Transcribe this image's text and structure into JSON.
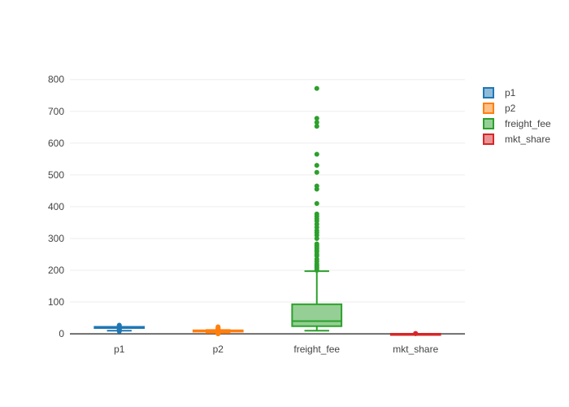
{
  "chart_data": {
    "type": "box",
    "title": "",
    "xlabel": "",
    "ylabel": "",
    "ylim": [
      -10,
      830
    ],
    "yticks": [
      0,
      100,
      200,
      300,
      400,
      500,
      600,
      700,
      800
    ],
    "grid": true,
    "legend_position": "top-right",
    "series": [
      {
        "name": "p1",
        "color": "#1f77b4",
        "min": 10,
        "q1": 20,
        "median": 21,
        "q3": 22,
        "max": 22,
        "outliers": [
          8,
          10,
          12,
          14,
          16,
          18,
          24,
          25,
          27
        ]
      },
      {
        "name": "p2",
        "color": "#ff7f0e",
        "min": 3,
        "q1": 7,
        "median": 9,
        "q3": 11,
        "max": 12,
        "outliers": [
          0,
          1,
          2,
          13,
          14,
          15,
          16,
          18,
          20,
          22
        ]
      },
      {
        "name": "freight_fee",
        "color": "#2ca02c",
        "min": 10,
        "q1": 24,
        "median": 40,
        "q3": 93,
        "max": 197,
        "outliers": [
          200,
          205,
          210,
          215,
          220,
          228,
          235,
          245,
          250,
          258,
          262,
          268,
          273,
          278,
          283,
          300,
          310,
          318,
          325,
          335,
          345,
          355,
          362,
          370,
          377,
          410,
          455,
          465,
          508,
          530,
          565,
          653,
          665,
          678,
          772
        ]
      },
      {
        "name": "mkt_share",
        "color": "#d62728",
        "min": 0,
        "q1": 0,
        "median": 0,
        "q3": 0.2,
        "max": 0.4,
        "outliers": [
          0.6,
          0.8,
          1.0
        ]
      }
    ]
  }
}
